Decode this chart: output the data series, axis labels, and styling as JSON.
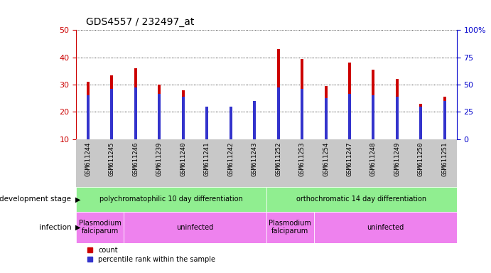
{
  "title": "GDS4557 / 232497_at",
  "samples": [
    "GSM611244",
    "GSM611245",
    "GSM611246",
    "GSM611239",
    "GSM611240",
    "GSM611241",
    "GSM611242",
    "GSM611243",
    "GSM611252",
    "GSM611253",
    "GSM611254",
    "GSM611247",
    "GSM611248",
    "GSM611249",
    "GSM611250",
    "GSM611251"
  ],
  "counts": [
    31,
    33.5,
    36,
    30,
    28,
    19.5,
    21.5,
    24,
    43,
    39.5,
    29.5,
    38,
    35.5,
    32,
    23,
    25.5
  ],
  "percentile": [
    26,
    28.5,
    29,
    26.5,
    25.5,
    22,
    22,
    24,
    29,
    28.5,
    25,
    26.5,
    26,
    25.5,
    22,
    24
  ],
  "ylim_left": [
    10,
    50
  ],
  "ylim_right": [
    0,
    100
  ],
  "yticks_left": [
    10,
    20,
    30,
    40,
    50
  ],
  "yticks_right": [
    0,
    25,
    50,
    75,
    100
  ],
  "bar_color_red": "#cc0000",
  "bar_color_blue": "#3333cc",
  "grid_color": "#000000",
  "bar_width": 0.12,
  "blue_bar_width": 0.12,
  "groups": [
    {
      "label": "polychromatophilic 10 day differentiation",
      "start": 0,
      "end": 8,
      "color": "#90ee90"
    },
    {
      "label": "orthochromatic 14 day differentiation",
      "start": 8,
      "end": 16,
      "color": "#90ee90"
    }
  ],
  "infection_groups": [
    {
      "label": "Plasmodium\nfalciparum",
      "start": 0,
      "end": 2,
      "color": "#ee82ee"
    },
    {
      "label": "uninfected",
      "start": 2,
      "end": 8,
      "color": "#ee82ee"
    },
    {
      "label": "Plasmodium\nfalciparum",
      "start": 8,
      "end": 10,
      "color": "#ee82ee"
    },
    {
      "label": "uninfected",
      "start": 10,
      "end": 16,
      "color": "#ee82ee"
    }
  ],
  "dev_stage_label": "development stage",
  "infection_label": "infection",
  "legend_count": "count",
  "legend_percentile": "percentile rank within the sample",
  "axis_label_color_left": "#cc0000",
  "axis_label_color_right": "#0000cc",
  "xlabel_bg_color": "#c8c8c8",
  "fig_bg": "#ffffff"
}
